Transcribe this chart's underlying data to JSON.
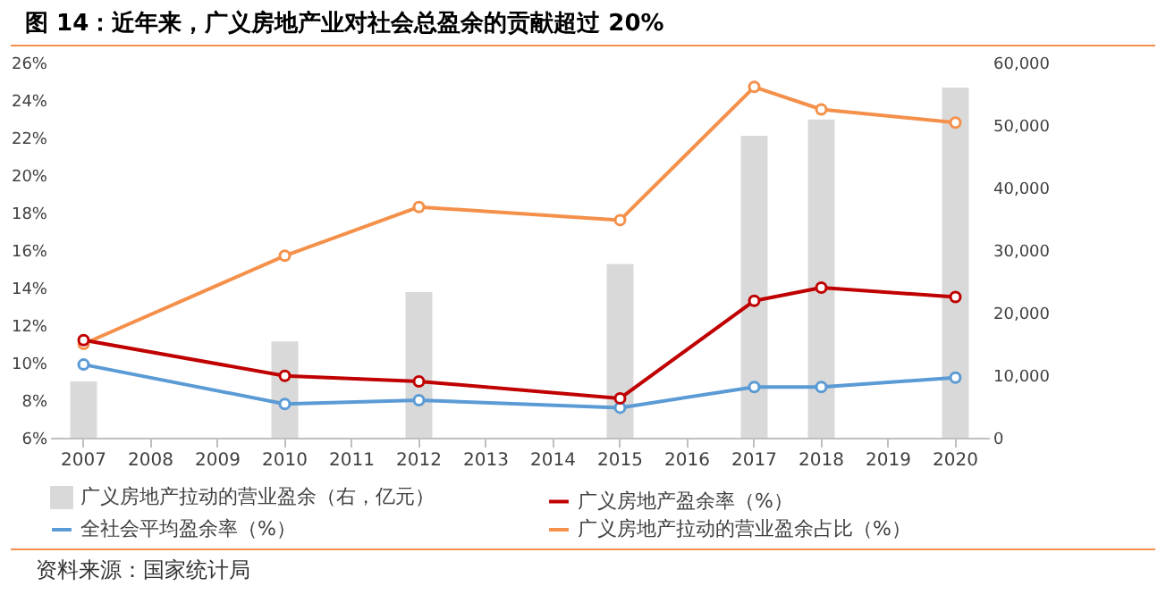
{
  "chart_data": {
    "type": "line",
    "title": "图 14：近年来，广义房地产业对社会总盈余的贡献超过 20%",
    "categories": [
      "2007",
      "2008",
      "2009",
      "2010",
      "2011",
      "2012",
      "2013",
      "2014",
      "2015",
      "2016",
      "2017",
      "2018",
      "2019",
      "2020"
    ],
    "series": [
      {
        "name": "广义房地产拉动的营业盈余（右，亿元）",
        "type": "bar",
        "axis": "y2",
        "color": "#d9d9d9",
        "values": [
          9000,
          null,
          null,
          15400,
          null,
          23300,
          null,
          null,
          27800,
          null,
          48300,
          50900,
          null,
          56000
        ]
      },
      {
        "name": "广义房地产盈余率（%）",
        "color": "#c00000",
        "values": [
          11.2,
          null,
          null,
          9.3,
          null,
          9.0,
          null,
          null,
          8.1,
          null,
          13.3,
          14.0,
          null,
          13.5
        ]
      },
      {
        "name": "全社会平均盈余率（%）",
        "color": "#5b9bd5",
        "values": [
          9.9,
          null,
          null,
          7.8,
          null,
          8.0,
          null,
          null,
          7.6,
          null,
          8.7,
          8.7,
          null,
          9.2
        ]
      },
      {
        "name": "广义房地产拉动的营业盈余占比（%）",
        "color": "#f4904a",
        "values": [
          11.0,
          null,
          null,
          15.7,
          null,
          18.3,
          null,
          null,
          17.6,
          null,
          24.7,
          23.5,
          null,
          22.8
        ]
      }
    ],
    "ylim": [
      6,
      26
    ],
    "yticks": [
      {
        "value": 6,
        "label": "6%"
      },
      {
        "value": 8,
        "label": "8%"
      },
      {
        "value": 10,
        "label": "10%"
      },
      {
        "value": 12,
        "label": "12%"
      },
      {
        "value": 14,
        "label": "14%"
      },
      {
        "value": 16,
        "label": "16%"
      },
      {
        "value": 18,
        "label": "18%"
      },
      {
        "value": 20,
        "label": "20%"
      },
      {
        "value": 22,
        "label": "22%"
      },
      {
        "value": 24,
        "label": "24%"
      },
      {
        "value": 26,
        "label": "26%"
      }
    ],
    "y2lim": [
      0,
      60000
    ],
    "y2ticks": [
      0,
      {
        "value": 10000,
        "label": "10,000"
      },
      {
        "value": 20000,
        "label": "20,000"
      },
      {
        "value": 30000,
        "label": "30,000"
      },
      {
        "value": 40000,
        "label": "40,000"
      },
      {
        "value": 50000,
        "label": "50,000"
      },
      {
        "value": 60000,
        "label": "60,000"
      }
    ],
    "marker": "circle",
    "line_style": "solid",
    "legend": "bottom",
    "annotations": [
      "资料来源：国家统计局"
    ]
  }
}
